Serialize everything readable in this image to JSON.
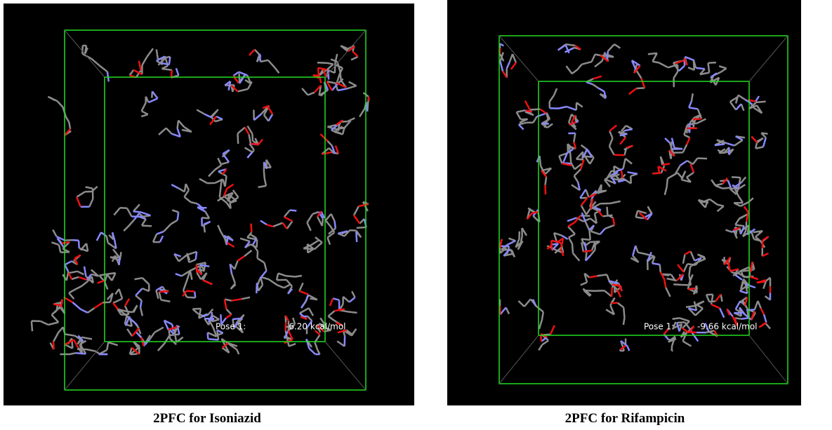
{
  "panels": [
    {
      "pose_label": "Pose 1:",
      "energy": "-6.20 kcal/mol",
      "caption": "2PFC for Isoniazid"
    },
    {
      "pose_label": "Pose 1:",
      "energy": "-9.66 kcal/mol",
      "caption": "2PFC for Rifampicin"
    }
  ]
}
